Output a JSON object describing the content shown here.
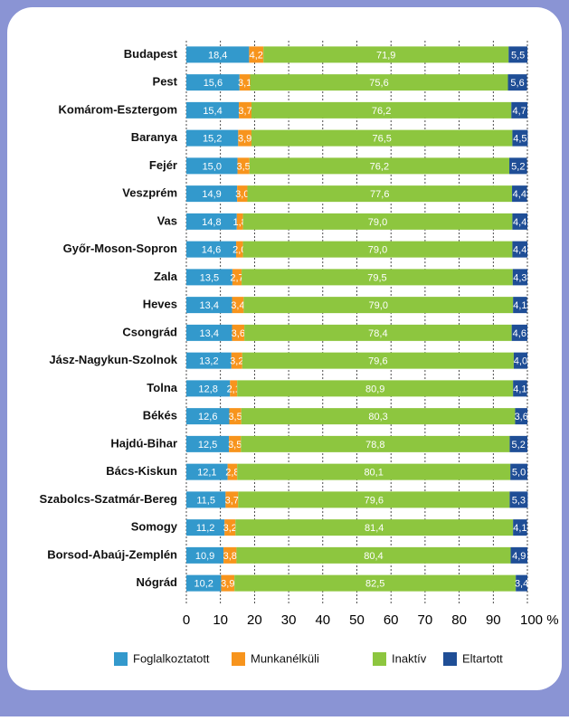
{
  "chart_data": {
    "type": "stacked_barh",
    "categories": [
      "Budapest",
      "Pest",
      "Komárom-Esztergom",
      "Baranya",
      "Fejér",
      "Veszprém",
      "Vas",
      "Győr-Moson-Sopron",
      "Zala",
      "Heves",
      "Csongrád",
      "Jász-Nagykun-Szolnok",
      "Tolna",
      "Békés",
      "Hajdú-Bihar",
      "Bács-Kiskun",
      "Szabolcs-Szatmár-Bereg",
      "Somogy",
      "Borsod-Abaúj-Zemplén",
      "Nógrád"
    ],
    "series": [
      {
        "name": "Foglalkoztatott",
        "color": "#3399cc",
        "values": [
          18.4,
          15.6,
          15.4,
          15.2,
          15.0,
          14.9,
          14.8,
          14.6,
          13.5,
          13.4,
          13.4,
          13.2,
          12.8,
          12.6,
          12.5,
          12.1,
          11.5,
          11.2,
          10.9,
          10.2
        ],
        "value_labels": [
          "18,4",
          "15,6",
          "15,4",
          "15,2",
          "15,0",
          "14,9",
          "14,8",
          "14,6",
          "13,5",
          "13,4",
          "13,4",
          "13,2",
          "12,8",
          "12,6",
          "12,5",
          "12,1",
          "11,5",
          "11,2",
          "10,9",
          "10,2"
        ]
      },
      {
        "name": "Munkanélküli",
        "color": "#f7941d",
        "values": [
          4.2,
          3.1,
          3.7,
          3.9,
          3.5,
          3.0,
          1.8,
          2.0,
          2.7,
          3.4,
          3.6,
          3.2,
          2.1,
          3.5,
          3.5,
          2.8,
          3.7,
          3.2,
          3.8,
          3.9
        ],
        "value_labels": [
          "4,2",
          "3,1",
          "3,7",
          "3,9",
          "3,5",
          "3,0",
          "1,8",
          "2,0",
          "2,7",
          "3,4",
          "3,6",
          "3,2",
          "2,1",
          "3,5",
          "3,5",
          "2,8",
          "3,7",
          "3,2",
          "3,8",
          "3,9"
        ]
      },
      {
        "name": "Inaktív",
        "color": "#8dc63f",
        "values": [
          71.9,
          75.6,
          76.2,
          76.5,
          76.2,
          77.6,
          79.0,
          79.0,
          79.5,
          79.0,
          78.4,
          79.6,
          80.9,
          80.3,
          78.8,
          80.1,
          79.6,
          81.4,
          80.4,
          82.5
        ],
        "value_labels": [
          "71,9",
          "75,6",
          "76,2",
          "76,5",
          "76,2",
          "77,6",
          "79,0",
          "79,0",
          "79,5",
          "79,0",
          "78,4",
          "79,6",
          "80,9",
          "80,3",
          "78,8",
          "80,1",
          "79,6",
          "81,4",
          "80,4",
          "82,5"
        ]
      },
      {
        "name": "Eltartott",
        "color": "#1f4e96",
        "values": [
          5.5,
          5.6,
          4.7,
          4.5,
          5.2,
          4.4,
          4.4,
          4.4,
          4.3,
          4.1,
          4.6,
          4.0,
          4.1,
          3.6,
          5.2,
          5.0,
          5.3,
          4.1,
          4.9,
          3.4
        ],
        "value_labels": [
          "5,5",
          "5,6",
          "4,7",
          "4,5",
          "5,2",
          "4,4",
          "4,4",
          "4,4",
          "4,3",
          "4,1",
          "4,6",
          "4,0",
          "4,1",
          "3,6",
          "5,2",
          "5,0",
          "5,3",
          "4,1",
          "4,9",
          "3,4"
        ]
      }
    ],
    "xlim": [
      0,
      100
    ],
    "xticks": [
      0,
      10,
      20,
      30,
      40,
      50,
      60,
      70,
      80,
      90,
      {
        "value": 100,
        "label": "100 %"
      }
    ],
    "grid": true
  }
}
